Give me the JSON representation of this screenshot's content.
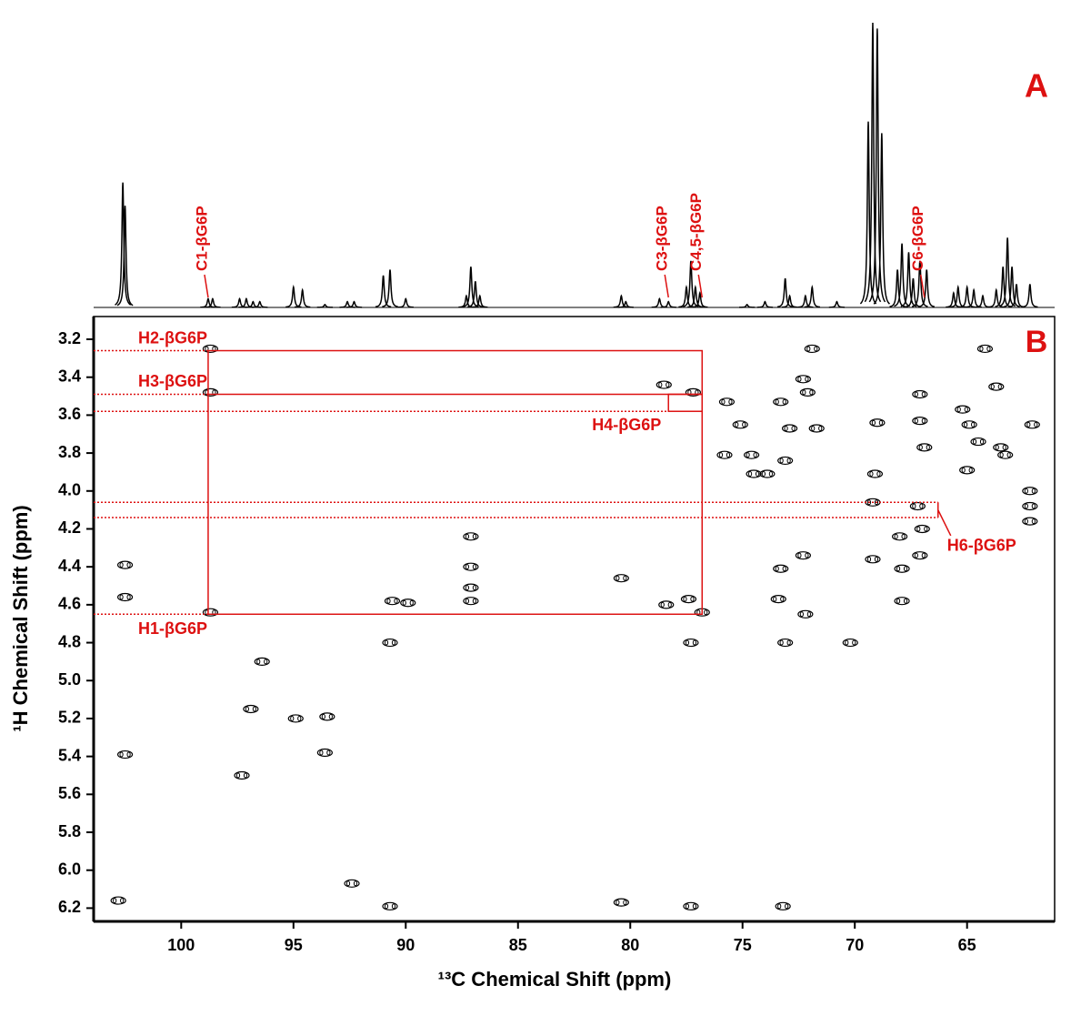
{
  "chart_data": [
    {
      "type": "spectrum",
      "panel": "A",
      "series": [
        {
          "color": "#000000",
          "x": [
            102.6,
            102.5,
            98.8,
            98.6,
            97.4,
            97.1,
            96.8,
            96.5,
            95.0,
            94.6,
            93.6,
            92.6,
            92.3,
            91.0,
            90.7,
            90.0,
            87.3,
            87.1,
            86.9,
            86.7,
            80.4,
            80.2,
            78.7,
            78.3,
            77.5,
            77.3,
            77.1,
            76.9,
            74.8,
            74.0,
            73.1,
            72.9,
            72.2,
            71.9,
            70.8,
            69.4,
            69.2,
            69.0,
            68.8,
            68.1,
            67.9,
            67.6,
            67.4,
            67.1,
            66.8,
            65.6,
            65.4,
            65.0,
            64.7,
            64.3,
            63.7,
            63.4,
            63.2,
            63.0,
            62.8,
            62.2
          ],
          "values": [
            43,
            35,
            3,
            3,
            3,
            3,
            2,
            2,
            7,
            6,
            1,
            2,
            2,
            11,
            13,
            3,
            4,
            14,
            9,
            4,
            4,
            2,
            3,
            2,
            7,
            16,
            7,
            5,
            1,
            2,
            10,
            4,
            4,
            7,
            2,
            64,
            98,
            96,
            60,
            13,
            22,
            19,
            10,
            16,
            13,
            5,
            7,
            7,
            6,
            4,
            6,
            14,
            24,
            14,
            8,
            8
          ]
        }
      ],
      "annotations": [
        {
          "text": "C1-βG6P",
          "x": 98.8
        },
        {
          "text": "C3-βG6P",
          "x": 78.3
        },
        {
          "text": "C4,5-βG6P",
          "x": 76.8
        },
        {
          "text": "C6-βG6P",
          "x": 66.9
        }
      ],
      "annotation_color": "#dd1111"
    },
    {
      "type": "scatter",
      "panel": "B",
      "xlabel": "¹³C Chemical Shift (ppm)",
      "ylabel": "¹H Chemical Shift (ppm)",
      "xlim": [
        103.9,
        61.1
      ],
      "ylim": [
        3.08,
        6.27
      ],
      "xticks": [
        100,
        95,
        90,
        85,
        80,
        75,
        70,
        65
      ],
      "yticks": [
        3.2,
        3.4,
        3.6,
        3.8,
        {
          "value": 4,
          "label": "4.0"
        },
        4.2,
        4.4,
        4.6,
        4.8,
        {
          "value": 5,
          "label": "5.0"
        },
        5.2,
        5.4,
        5.6,
        5.8,
        {
          "value": 6,
          "label": "6.0"
        },
        6.2
      ],
      "series": [
        {
          "color": "#000000",
          "x": [
            102.5,
            102.5,
            102.8,
            102.5,
            98.7,
            98.7,
            98.7,
            96.4,
            96.9,
            97.3,
            94.9,
            93.5,
            93.6,
            92.4,
            90.7,
            90.7,
            90.6,
            89.9,
            87.1,
            87.1,
            87.1,
            87.1,
            80.4,
            80.4,
            78.5,
            77.2,
            77.4,
            77.3,
            77.3,
            78.4,
            76.8,
            75.7,
            75.8,
            74.6,
            74.5,
            75.1,
            73.9,
            73.3,
            73.1,
            73.3,
            73.4,
            73.1,
            73.2,
            72.3,
            72.2,
            72.1,
            72.3,
            71.9,
            71.7,
            72.9,
            70.2,
            69.1,
            69.0,
            69.2,
            69.2,
            68.0,
            67.9,
            67.9,
            67.2,
            67.1,
            67.1,
            67.1,
            67.0,
            66.9,
            65.2,
            64.9,
            65.0,
            64.5,
            63.5,
            63.3,
            63.7,
            64.2,
            62.2,
            62.2,
            62.2,
            62.1
          ],
          "values": [
            4.39,
            4.56,
            6.16,
            5.39,
            3.25,
            3.48,
            4.64,
            4.9,
            5.15,
            5.5,
            5.2,
            5.19,
            5.38,
            6.07,
            6.19,
            4.8,
            4.58,
            4.59,
            4.24,
            4.4,
            4.58,
            4.51,
            4.46,
            6.17,
            3.44,
            3.48,
            4.57,
            4.8,
            6.19,
            4.6,
            4.64,
            3.53,
            3.81,
            3.81,
            3.91,
            3.65,
            3.91,
            3.53,
            3.84,
            4.41,
            4.57,
            4.8,
            6.19,
            4.34,
            4.65,
            3.48,
            3.41,
            3.25,
            3.67,
            3.67,
            4.8,
            3.91,
            3.64,
            4.06,
            4.36,
            4.24,
            4.41,
            4.58,
            4.08,
            3.49,
            3.63,
            4.34,
            4.2,
            3.77,
            3.57,
            3.65,
            3.89,
            3.74,
            3.77,
            3.81,
            3.45,
            3.25,
            4.0,
            4.16,
            4.08,
            3.65
          ]
        }
      ],
      "annotations": [
        {
          "text": "H2-βG6P",
          "y": 3.26
        },
        {
          "text": "H3-βG6P",
          "y": 3.49
        },
        {
          "text": "H4-βG6P",
          "y": 3.58
        },
        {
          "text": "H1-βG6P",
          "y": 4.65
        },
        {
          "text": "H6-βG6P",
          "y": [
            4.06,
            4.14
          ]
        }
      ],
      "annotation_color": "#dd1111"
    }
  ]
}
